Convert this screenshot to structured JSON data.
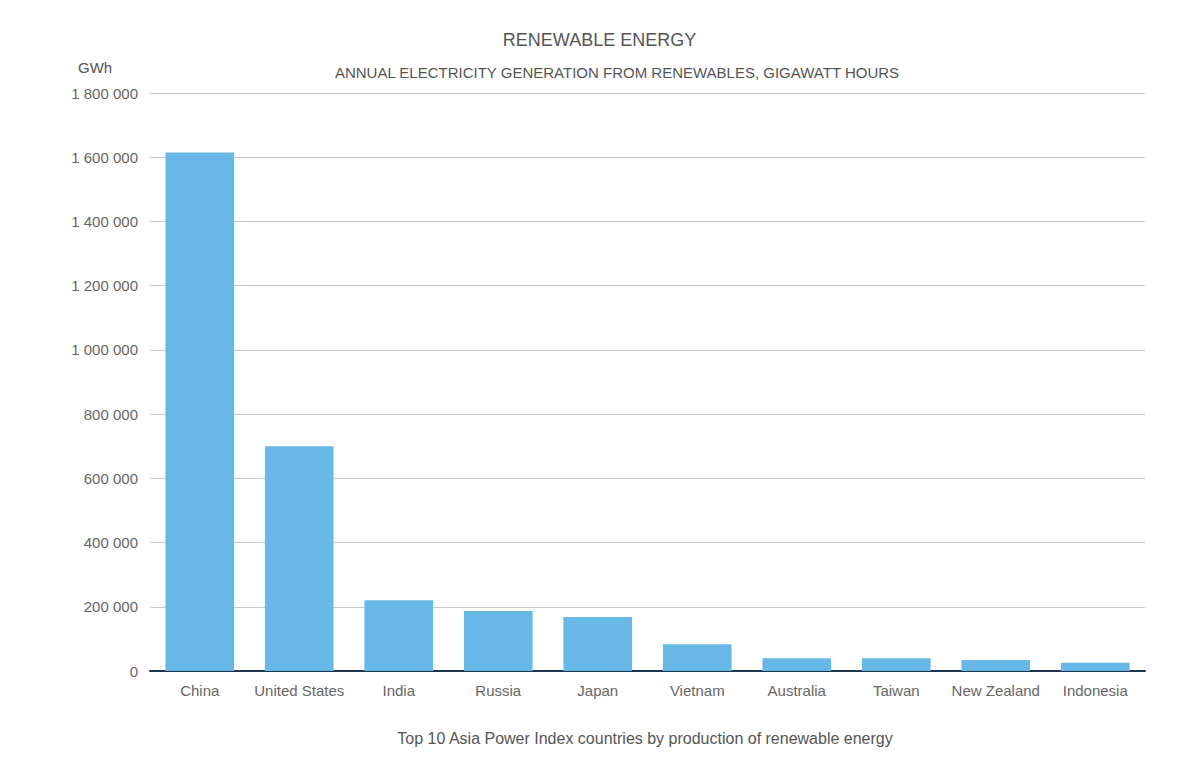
{
  "chart_data": {
    "type": "bar",
    "title": "RENEWABLE ENERGY",
    "subtitle": "ANNUAL ELECTRICITY GENERATION FROM RENEWABLES, GIGAWATT HOURS",
    "ylabel": "GWh",
    "xlabel": "Top 10 Asia Power Index countries by production of renewable energy",
    "categories": [
      "China",
      "United States",
      "India",
      "Russia",
      "Japan",
      "Vietnam",
      "Australia",
      "Taiwan",
      "New Zealand",
      "Indonesia"
    ],
    "values": [
      1615000,
      700000,
      220000,
      187000,
      168000,
      83000,
      40000,
      40000,
      34000,
      26000
    ],
    "color": "#67b8e6",
    "ylim": [
      0,
      1800000
    ],
    "yticks": [
      0,
      {
        "value": 200000,
        "label": "200 000"
      },
      {
        "value": 400000,
        "label": "400 000"
      },
      {
        "value": 600000,
        "label": "600 000"
      },
      {
        "value": 800000,
        "label": "800 000"
      },
      {
        "value": 1000000,
        "label": "1 000 000"
      },
      {
        "value": 1200000,
        "label": "1 200 000"
      },
      {
        "value": 1400000,
        "label": "1 400 000"
      },
      {
        "value": 1600000,
        "label": "1 600 000"
      },
      {
        "value": 1800000,
        "label": "1 800 000"
      }
    ],
    "grid": true
  }
}
